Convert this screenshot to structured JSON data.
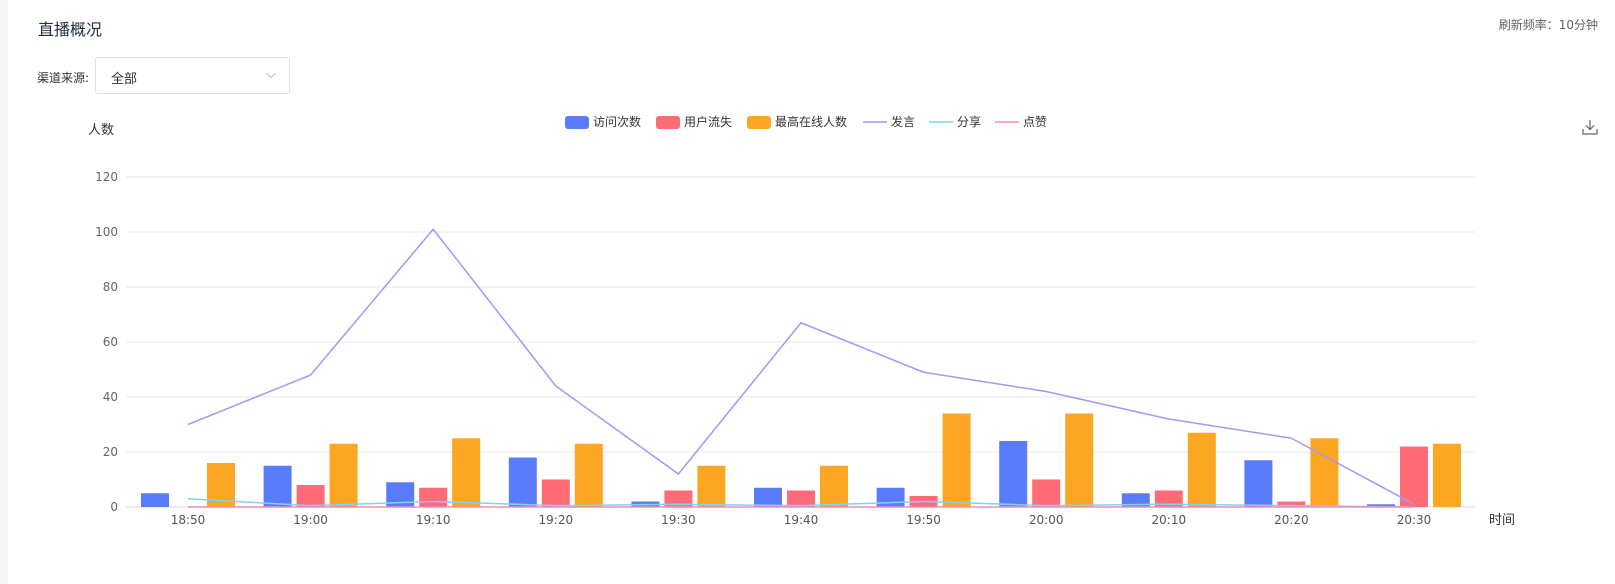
{
  "header": {
    "title": "直播概况",
    "refresh": "刷新频率：10分钟"
  },
  "filter": {
    "label": "渠道来源:",
    "selected": "全部"
  },
  "colors": {
    "visits": "#5b7cfa",
    "loss": "#ff6b76",
    "peak": "#fba724",
    "speech": "#a497f7",
    "share": "#80d4ef",
    "like": "#f48bb1"
  },
  "icons": {
    "select": "chevron-down-icon",
    "download": "download-icon"
  },
  "chart_data": {
    "type": "bar",
    "ylabel": "人数",
    "xlabel": "时间",
    "ylim": [
      0,
      120
    ],
    "yticks": [
      0,
      20,
      40,
      60,
      80,
      100,
      120
    ],
    "grid": true,
    "legend_position": "top",
    "categories": [
      "18:50",
      "19:00",
      "19:10",
      "19:20",
      "19:30",
      "19:40",
      "19:50",
      "20:00",
      "20:10",
      "20:20",
      "20:30"
    ],
    "series": [
      {
        "name": "访问次数",
        "kind": "bar",
        "color": "#5b7cfa",
        "values": [
          5,
          15,
          9,
          18,
          2,
          7,
          7,
          24,
          5,
          17,
          1
        ]
      },
      {
        "name": "用户流失",
        "kind": "bar",
        "color": "#ff6b76",
        "values": [
          0,
          8,
          7,
          10,
          6,
          6,
          4,
          10,
          6,
          2,
          22
        ]
      },
      {
        "name": "最高在线人数",
        "kind": "bar",
        "color": "#fba724",
        "values": [
          16,
          23,
          25,
          23,
          15,
          15,
          34,
          34,
          27,
          25,
          23
        ]
      },
      {
        "name": "发言",
        "kind": "line",
        "color": "#a497f7",
        "values": [
          30,
          48,
          101,
          44,
          12,
          67,
          49,
          42,
          32,
          25,
          1
        ]
      },
      {
        "name": "分享",
        "kind": "line",
        "color": "#80d4ef",
        "values": [
          3,
          0.5,
          2,
          0.5,
          1,
          0.5,
          2,
          0.5,
          1,
          0.5,
          0
        ]
      },
      {
        "name": "点赞",
        "kind": "line",
        "color": "#f48bb1",
        "values": [
          0,
          0,
          0,
          0,
          0,
          0,
          0,
          0,
          0,
          0,
          0
        ]
      }
    ]
  }
}
